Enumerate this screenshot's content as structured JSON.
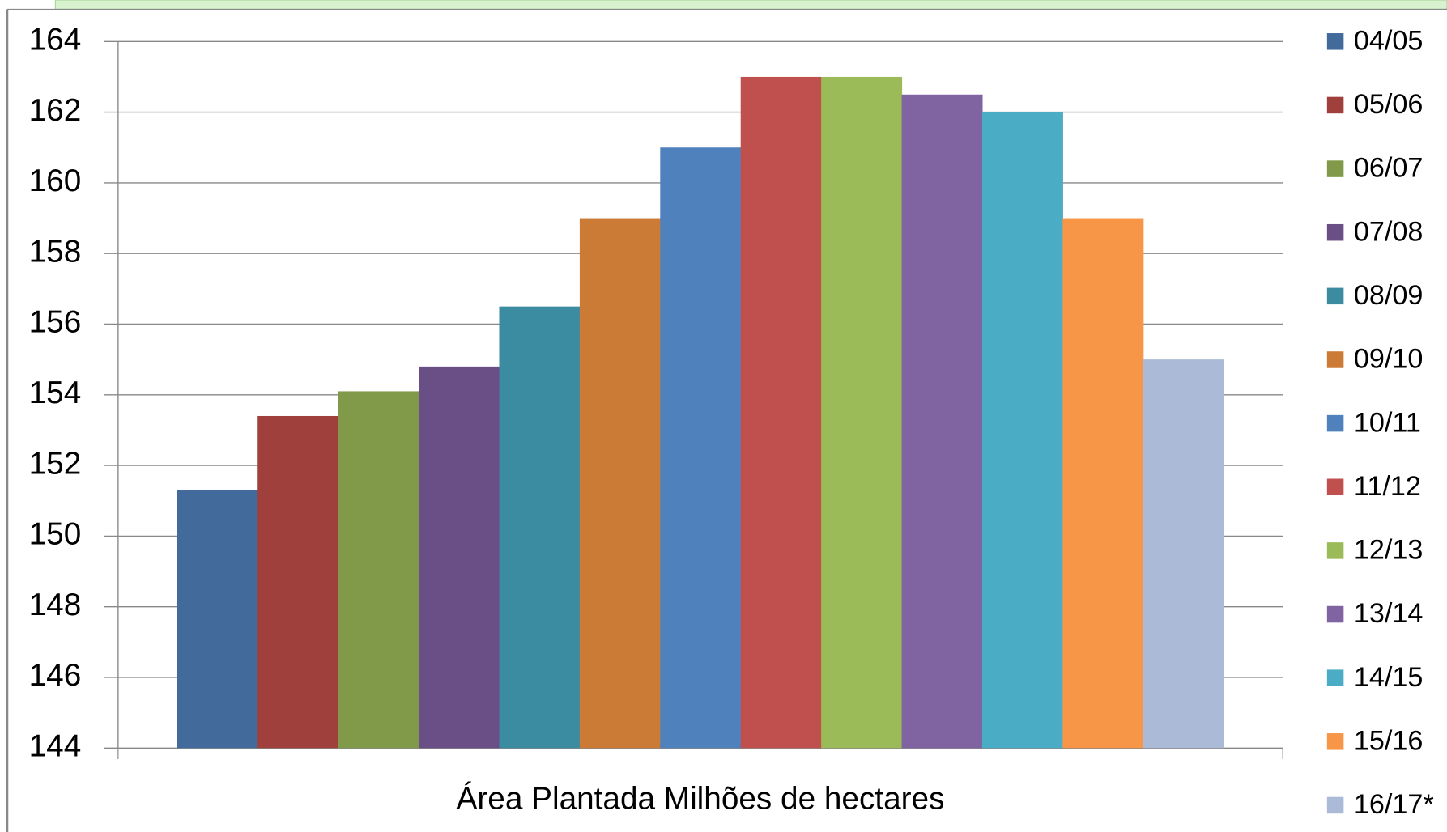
{
  "chart_data": {
    "type": "bar",
    "categories": [
      "Área Plantada Milhões de hectares"
    ],
    "series": [
      {
        "name": "04/05",
        "color": "#426A9A",
        "values": [
          151.3
        ]
      },
      {
        "name": "05/06",
        "color": "#A0403D",
        "values": [
          153.4
        ]
      },
      {
        "name": "06/07",
        "color": "#809A49",
        "values": [
          154.1
        ]
      },
      {
        "name": "07/08",
        "color": "#6A4F86",
        "values": [
          154.8
        ]
      },
      {
        "name": "08/09",
        "color": "#3B8BA1",
        "values": [
          156.5
        ]
      },
      {
        "name": "09/10",
        "color": "#CC7B36",
        "values": [
          159
        ]
      },
      {
        "name": "10/11",
        "color": "#4F81BD",
        "values": [
          161
        ]
      },
      {
        "name": "11/12",
        "color": "#C0504D",
        "values": [
          163
        ]
      },
      {
        "name": "12/13",
        "color": "#9BBB59",
        "values": [
          163
        ]
      },
      {
        "name": "13/14",
        "color": "#8064A2",
        "values": [
          162.5
        ]
      },
      {
        "name": "14/15",
        "color": "#4BACC6",
        "values": [
          162
        ]
      },
      {
        "name": "15/16",
        "color": "#F79646",
        "values": [
          159
        ]
      },
      {
        "name": "16/17*",
        "color": "#AABAD7",
        "values": [
          155
        ]
      }
    ],
    "ylim": [
      144,
      164
    ],
    "yticks": [
      144,
      146,
      148,
      150,
      152,
      154,
      156,
      158,
      160,
      162,
      164
    ],
    "grid": true,
    "legend": "right"
  }
}
